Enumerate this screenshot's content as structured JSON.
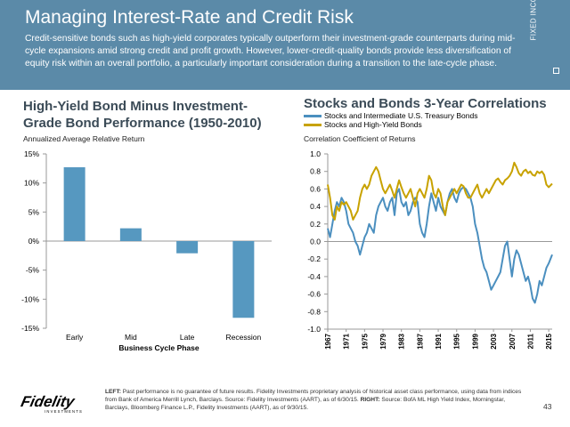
{
  "header": {
    "title": "Managing Interest-Rate and Credit Risk",
    "subtitle": "Credit-sensitive bonds such as high-yield corporates typically outperform their investment-grade counterparts during mid-cycle expansions amid strong credit and profit growth. However, lower-credit-quality bonds provide less diversification of equity risk within an overall portfolio, a particularly important consideration during a transition to the late-cycle phase.",
    "side_tab": "FIXED INCOME"
  },
  "colors": {
    "header_bg": "#5b8aa8",
    "bar": "#5698c0",
    "treasury_line": "#4b8fbf",
    "hy_line": "#c8a200",
    "title_text": "#3b4b57"
  },
  "chart_data": [
    {
      "type": "bar",
      "title": "High-Yield Bond Minus Investment-Grade Bond Performance (1950-2010)",
      "title_line1": "High-Yield Bond Minus Investment-",
      "title_line2": "Grade Bond Performance (1950-2010)",
      "subtitle": "Annualized Average Relative Return",
      "xlabel": "Business Cycle Phase",
      "ylabel": "",
      "categories": [
        "Early",
        "Mid",
        "Late",
        "Recession"
      ],
      "values": [
        12.7,
        2.2,
        -2.1,
        -13.2
      ],
      "ylim": [
        -15,
        15
      ],
      "yticks": [
        15,
        10,
        5,
        0,
        -5,
        -10,
        -15
      ],
      "ytick_labels": [
        "15%",
        "10%",
        "5%",
        "0%",
        "-5%",
        "-10%",
        "-15%"
      ],
      "grid": false
    },
    {
      "type": "line",
      "title": "Stocks and Bonds 3-Year Correlations",
      "subtitle": "Correlation Coefficient of Returns",
      "xlabel": "",
      "ylabel": "",
      "ylim": [
        -1.0,
        1.0
      ],
      "yticks": [
        "1.0",
        "0.8",
        "0.6",
        "0.4",
        "0.2",
        "0.0",
        "-0.2",
        "-0.4",
        "-0.6",
        "-0.8",
        "-1.0"
      ],
      "xlim": [
        1967,
        2015.75
      ],
      "xticks": [
        "1967",
        "1971",
        "1975",
        "1979",
        "1983",
        "1987",
        "1991",
        "1995",
        "1999",
        "2003",
        "2007",
        "2011",
        "2015"
      ],
      "legend_position": "top",
      "grid": false,
      "series": [
        {
          "name": "Stocks and Intermediate U.S. Treasury Bonds",
          "x": [
            1967.0,
            1967.5,
            1968.0,
            1968.5,
            1969.0,
            1969.5,
            1970.0,
            1970.5,
            1971.0,
            1971.5,
            1972.0,
            1972.5,
            1973.0,
            1973.5,
            1974.0,
            1974.5,
            1975.0,
            1975.5,
            1976.0,
            1976.5,
            1977.0,
            1977.5,
            1978.0,
            1978.5,
            1979.0,
            1979.5,
            1980.0,
            1980.5,
            1981.0,
            1981.5,
            1982.0,
            1982.5,
            1983.0,
            1983.5,
            1984.0,
            1984.5,
            1985.0,
            1985.5,
            1986.0,
            1986.5,
            1987.0,
            1987.5,
            1988.0,
            1988.5,
            1989.0,
            1989.5,
            1990.0,
            1990.5,
            1991.0,
            1991.5,
            1992.0,
            1992.5,
            1993.0,
            1993.5,
            1994.0,
            1994.5,
            1995.0,
            1995.5,
            1996.0,
            1996.5,
            1997.0,
            1997.5,
            1998.0,
            1998.5,
            1999.0,
            1999.5,
            2000.0,
            2000.5,
            2001.0,
            2001.5,
            2002.0,
            2002.5,
            2003.0,
            2003.5,
            2004.0,
            2004.5,
            2005.0,
            2005.5,
            2006.0,
            2006.5,
            2007.0,
            2007.5,
            2008.0,
            2008.5,
            2009.0,
            2009.5,
            2010.0,
            2010.5,
            2011.0,
            2011.5,
            2012.0,
            2012.5,
            2013.0,
            2013.5,
            2014.0,
            2014.5,
            2015.0,
            2015.75
          ],
          "values": [
            0.15,
            0.05,
            0.2,
            0.35,
            0.45,
            0.4,
            0.5,
            0.45,
            0.35,
            0.2,
            0.15,
            0.1,
            0.0,
            -0.05,
            -0.15,
            -0.05,
            0.05,
            0.1,
            0.2,
            0.15,
            0.1,
            0.3,
            0.4,
            0.45,
            0.5,
            0.4,
            0.35,
            0.45,
            0.5,
            0.3,
            0.55,
            0.6,
            0.45,
            0.4,
            0.45,
            0.3,
            0.35,
            0.45,
            0.5,
            0.45,
            0.2,
            0.1,
            0.05,
            0.2,
            0.4,
            0.55,
            0.45,
            0.35,
            0.5,
            0.4,
            0.35,
            0.3,
            0.45,
            0.55,
            0.6,
            0.5,
            0.45,
            0.55,
            0.6,
            0.62,
            0.6,
            0.55,
            0.5,
            0.4,
            0.2,
            0.1,
            -0.05,
            -0.2,
            -0.3,
            -0.35,
            -0.45,
            -0.55,
            -0.5,
            -0.45,
            -0.4,
            -0.35,
            -0.2,
            -0.05,
            0.0,
            -0.2,
            -0.4,
            -0.2,
            -0.1,
            -0.15,
            -0.25,
            -0.35,
            -0.45,
            -0.4,
            -0.5,
            -0.65,
            -0.7,
            -0.6,
            -0.45,
            -0.5,
            -0.4,
            -0.3,
            -0.25,
            -0.15
          ]
        },
        {
          "name": "Stocks and High-Yield Bonds",
          "x": [
            1967.0,
            1967.5,
            1968.0,
            1968.5,
            1969.0,
            1969.5,
            1970.0,
            1970.5,
            1971.0,
            1971.5,
            1972.0,
            1972.5,
            1973.0,
            1973.5,
            1974.0,
            1974.5,
            1975.0,
            1975.5,
            1976.0,
            1976.5,
            1977.0,
            1977.5,
            1978.0,
            1978.5,
            1979.0,
            1979.5,
            1980.0,
            1980.5,
            1981.0,
            1981.5,
            1982.0,
            1982.5,
            1983.0,
            1983.5,
            1984.0,
            1984.5,
            1985.0,
            1985.5,
            1986.0,
            1986.5,
            1987.0,
            1987.5,
            1988.0,
            1988.5,
            1989.0,
            1989.5,
            1990.0,
            1990.5,
            1991.0,
            1991.5,
            1992.0,
            1992.5,
            1993.0,
            1993.5,
            1994.0,
            1994.5,
            1995.0,
            1995.5,
            1996.0,
            1996.5,
            1997.0,
            1997.5,
            1998.0,
            1998.5,
            1999.0,
            1999.5,
            2000.0,
            2000.5,
            2001.0,
            2001.5,
            2002.0,
            2002.5,
            2003.0,
            2003.5,
            2004.0,
            2004.5,
            2005.0,
            2005.5,
            2006.0,
            2006.5,
            2007.0,
            2007.5,
            2008.0,
            2008.5,
            2009.0,
            2009.5,
            2010.0,
            2010.5,
            2011.0,
            2011.5,
            2012.0,
            2012.5,
            2013.0,
            2013.5,
            2014.0,
            2014.5,
            2015.0,
            2015.75
          ],
          "values": [
            0.65,
            0.5,
            0.3,
            0.25,
            0.4,
            0.35,
            0.45,
            0.42,
            0.45,
            0.4,
            0.35,
            0.25,
            0.3,
            0.35,
            0.5,
            0.6,
            0.65,
            0.6,
            0.65,
            0.75,
            0.8,
            0.85,
            0.8,
            0.7,
            0.6,
            0.55,
            0.6,
            0.65,
            0.58,
            0.5,
            0.6,
            0.7,
            0.62,
            0.55,
            0.5,
            0.55,
            0.6,
            0.5,
            0.4,
            0.55,
            0.6,
            0.55,
            0.5,
            0.6,
            0.75,
            0.7,
            0.55,
            0.5,
            0.6,
            0.55,
            0.4,
            0.3,
            0.45,
            0.5,
            0.55,
            0.6,
            0.55,
            0.6,
            0.65,
            0.63,
            0.55,
            0.5,
            0.5,
            0.55,
            0.6,
            0.65,
            0.55,
            0.5,
            0.55,
            0.6,
            0.55,
            0.6,
            0.65,
            0.7,
            0.72,
            0.68,
            0.65,
            0.7,
            0.72,
            0.75,
            0.8,
            0.9,
            0.85,
            0.78,
            0.75,
            0.8,
            0.82,
            0.78,
            0.8,
            0.76,
            0.75,
            0.8,
            0.78,
            0.8,
            0.76,
            0.65,
            0.62,
            0.66
          ]
        }
      ]
    }
  ],
  "footer": {
    "logo_text": "Fidelity",
    "logo_subtext": "INVESTMENTS",
    "footnote_left_label": "LEFT:",
    "footnote_left": " Past performance is no guarantee of future results. Fidelity Investments proprietary analysis of historical asset class performance, using data from indices from Bank of America Merrill Lynch, Barclays. Source: Fidelity Investments (AART), as of 6/30/15. ",
    "footnote_right_label": "RIGHT:",
    "footnote_right": " Source: BofA ML High Yield Index, Morningstar, Barclays, Bloomberg Finance L.P., Fidelity Investments (AART), as of 9/30/15.",
    "page_number": "43"
  }
}
